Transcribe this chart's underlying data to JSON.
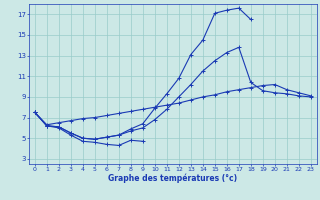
{
  "xlabel": "Graphe des températures (°c)",
  "bg_color": "#cce8e6",
  "grid_color": "#99ccca",
  "line_color": "#1a3ab4",
  "xlim": [
    -0.5,
    23.5
  ],
  "ylim": [
    2.5,
    18.0
  ],
  "yticks": [
    3,
    5,
    7,
    9,
    11,
    13,
    15,
    17
  ],
  "xticks": [
    0,
    1,
    2,
    3,
    4,
    5,
    6,
    7,
    8,
    9,
    10,
    11,
    12,
    13,
    14,
    15,
    16,
    17,
    18,
    19,
    20,
    21,
    22,
    23
  ],
  "series": [
    {
      "x": [
        0,
        1,
        2,
        3,
        4,
        5,
        6,
        7,
        8,
        9
      ],
      "y": [
        7.5,
        6.2,
        6.0,
        5.3,
        4.7,
        4.6,
        4.4,
        4.3,
        4.8,
        4.7
      ]
    },
    {
      "x": [
        0,
        1,
        2,
        3,
        4,
        5,
        6,
        7,
        8,
        9,
        10,
        11,
        12,
        13,
        14,
        15,
        16,
        17,
        18,
        19,
        20,
        21,
        22,
        23
      ],
      "y": [
        7.5,
        6.2,
        6.1,
        5.5,
        5.0,
        4.9,
        5.1,
        5.3,
        5.7,
        6.0,
        6.8,
        7.8,
        9.0,
        10.2,
        11.5,
        12.5,
        13.3,
        13.8,
        10.4,
        9.6,
        9.4,
        9.3,
        9.1,
        9.0
      ]
    },
    {
      "x": [
        0,
        1,
        2,
        3,
        4,
        5,
        6,
        7,
        8,
        9,
        10,
        11,
        12,
        13,
        14,
        15,
        16,
        17,
        18
      ],
      "y": [
        7.5,
        6.2,
        6.1,
        5.5,
        5.0,
        4.9,
        5.1,
        5.3,
        5.9,
        6.4,
        7.9,
        9.3,
        10.8,
        13.1,
        14.5,
        17.1,
        17.4,
        17.6,
        16.5
      ]
    },
    {
      "x": [
        0,
        1,
        2,
        3,
        4,
        5,
        6,
        7,
        8,
        9,
        10,
        11,
        12,
        13,
        14,
        15,
        16,
        17,
        18,
        19,
        20,
        21,
        22,
        23
      ],
      "y": [
        7.5,
        6.3,
        6.5,
        6.7,
        6.9,
        7.0,
        7.2,
        7.4,
        7.6,
        7.8,
        8.0,
        8.2,
        8.4,
        8.7,
        9.0,
        9.2,
        9.5,
        9.7,
        9.9,
        10.1,
        10.2,
        9.7,
        9.4,
        9.1
      ]
    }
  ]
}
